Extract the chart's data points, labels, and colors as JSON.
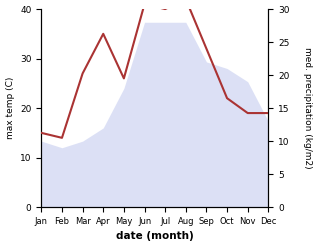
{
  "months": [
    "Jan",
    "Feb",
    "Mar",
    "Apr",
    "May",
    "Jun",
    "Jul",
    "Aug",
    "Sep",
    "Oct",
    "Nov",
    "Dec"
  ],
  "temperature": [
    15,
    14,
    27,
    35,
    26,
    41,
    40,
    42,
    32,
    22,
    19,
    19
  ],
  "precipitation": [
    10,
    9,
    10,
    12,
    18,
    28,
    28,
    28,
    22,
    21,
    19,
    13
  ],
  "temp_color": "#aa3333",
  "precip_color_fill": "#c0c8ee",
  "background_color": "#ffffff",
  "xlabel": "date (month)",
  "ylabel_left": "max temp (C)",
  "ylabel_right": "med. precipitation (kg/m2)",
  "ylim_left": [
    0,
    40
  ],
  "ylim_right": [
    0,
    30
  ]
}
